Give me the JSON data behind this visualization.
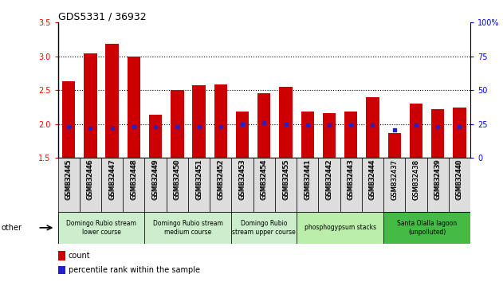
{
  "title": "GDS5331 / 36932",
  "samples": [
    "GSM832445",
    "GSM832446",
    "GSM832447",
    "GSM832448",
    "GSM832449",
    "GSM832450",
    "GSM832451",
    "GSM832452",
    "GSM832453",
    "GSM832454",
    "GSM832455",
    "GSM832441",
    "GSM832442",
    "GSM832443",
    "GSM832444",
    "GSM832437",
    "GSM832438",
    "GSM832439",
    "GSM832440"
  ],
  "bar_bottoms": [
    1.5,
    1.5,
    1.5,
    1.5,
    1.5,
    1.5,
    1.5,
    1.5,
    1.5,
    1.5,
    1.5,
    1.5,
    1.5,
    1.5,
    1.5,
    1.5,
    1.5,
    1.5,
    1.5
  ],
  "bar_tops": [
    2.63,
    3.05,
    3.19,
    3.0,
    2.14,
    2.5,
    2.57,
    2.58,
    2.18,
    2.46,
    2.55,
    2.18,
    2.16,
    2.18,
    2.4,
    1.87,
    2.3,
    2.22,
    2.25
  ],
  "percentile_values": [
    23,
    22,
    22,
    23,
    23,
    23,
    23,
    23,
    25,
    26,
    25,
    24,
    24,
    24,
    24,
    21,
    24,
    23,
    23
  ],
  "ylim_left": [
    1.5,
    3.5
  ],
  "ylim_right": [
    0,
    100
  ],
  "yticks_left": [
    1.5,
    2.0,
    2.5,
    3.0,
    3.5
  ],
  "yticks_right": [
    0,
    25,
    50,
    75,
    100
  ],
  "bar_color": "#cc0000",
  "dot_color": "#2222cc",
  "groups": [
    {
      "label": "Domingo Rubio stream\nlower course",
      "start": 0,
      "end": 4,
      "color": "#cceecc"
    },
    {
      "label": "Domingo Rubio stream\nmedium course",
      "start": 4,
      "end": 8,
      "color": "#cceecc"
    },
    {
      "label": "Domingo Rubio\nstream upper course",
      "start": 8,
      "end": 11,
      "color": "#cceecc"
    },
    {
      "label": "phosphogypsum stacks",
      "start": 11,
      "end": 15,
      "color": "#bbeeaa"
    },
    {
      "label": "Santa Olalla lagoon\n(unpolluted)",
      "start": 15,
      "end": 19,
      "color": "#44bb44"
    }
  ],
  "legend_count_color": "#cc0000",
  "legend_dot_color": "#2222cc",
  "grid_yticks": [
    2.0,
    2.5,
    3.0
  ],
  "other_label": "other"
}
